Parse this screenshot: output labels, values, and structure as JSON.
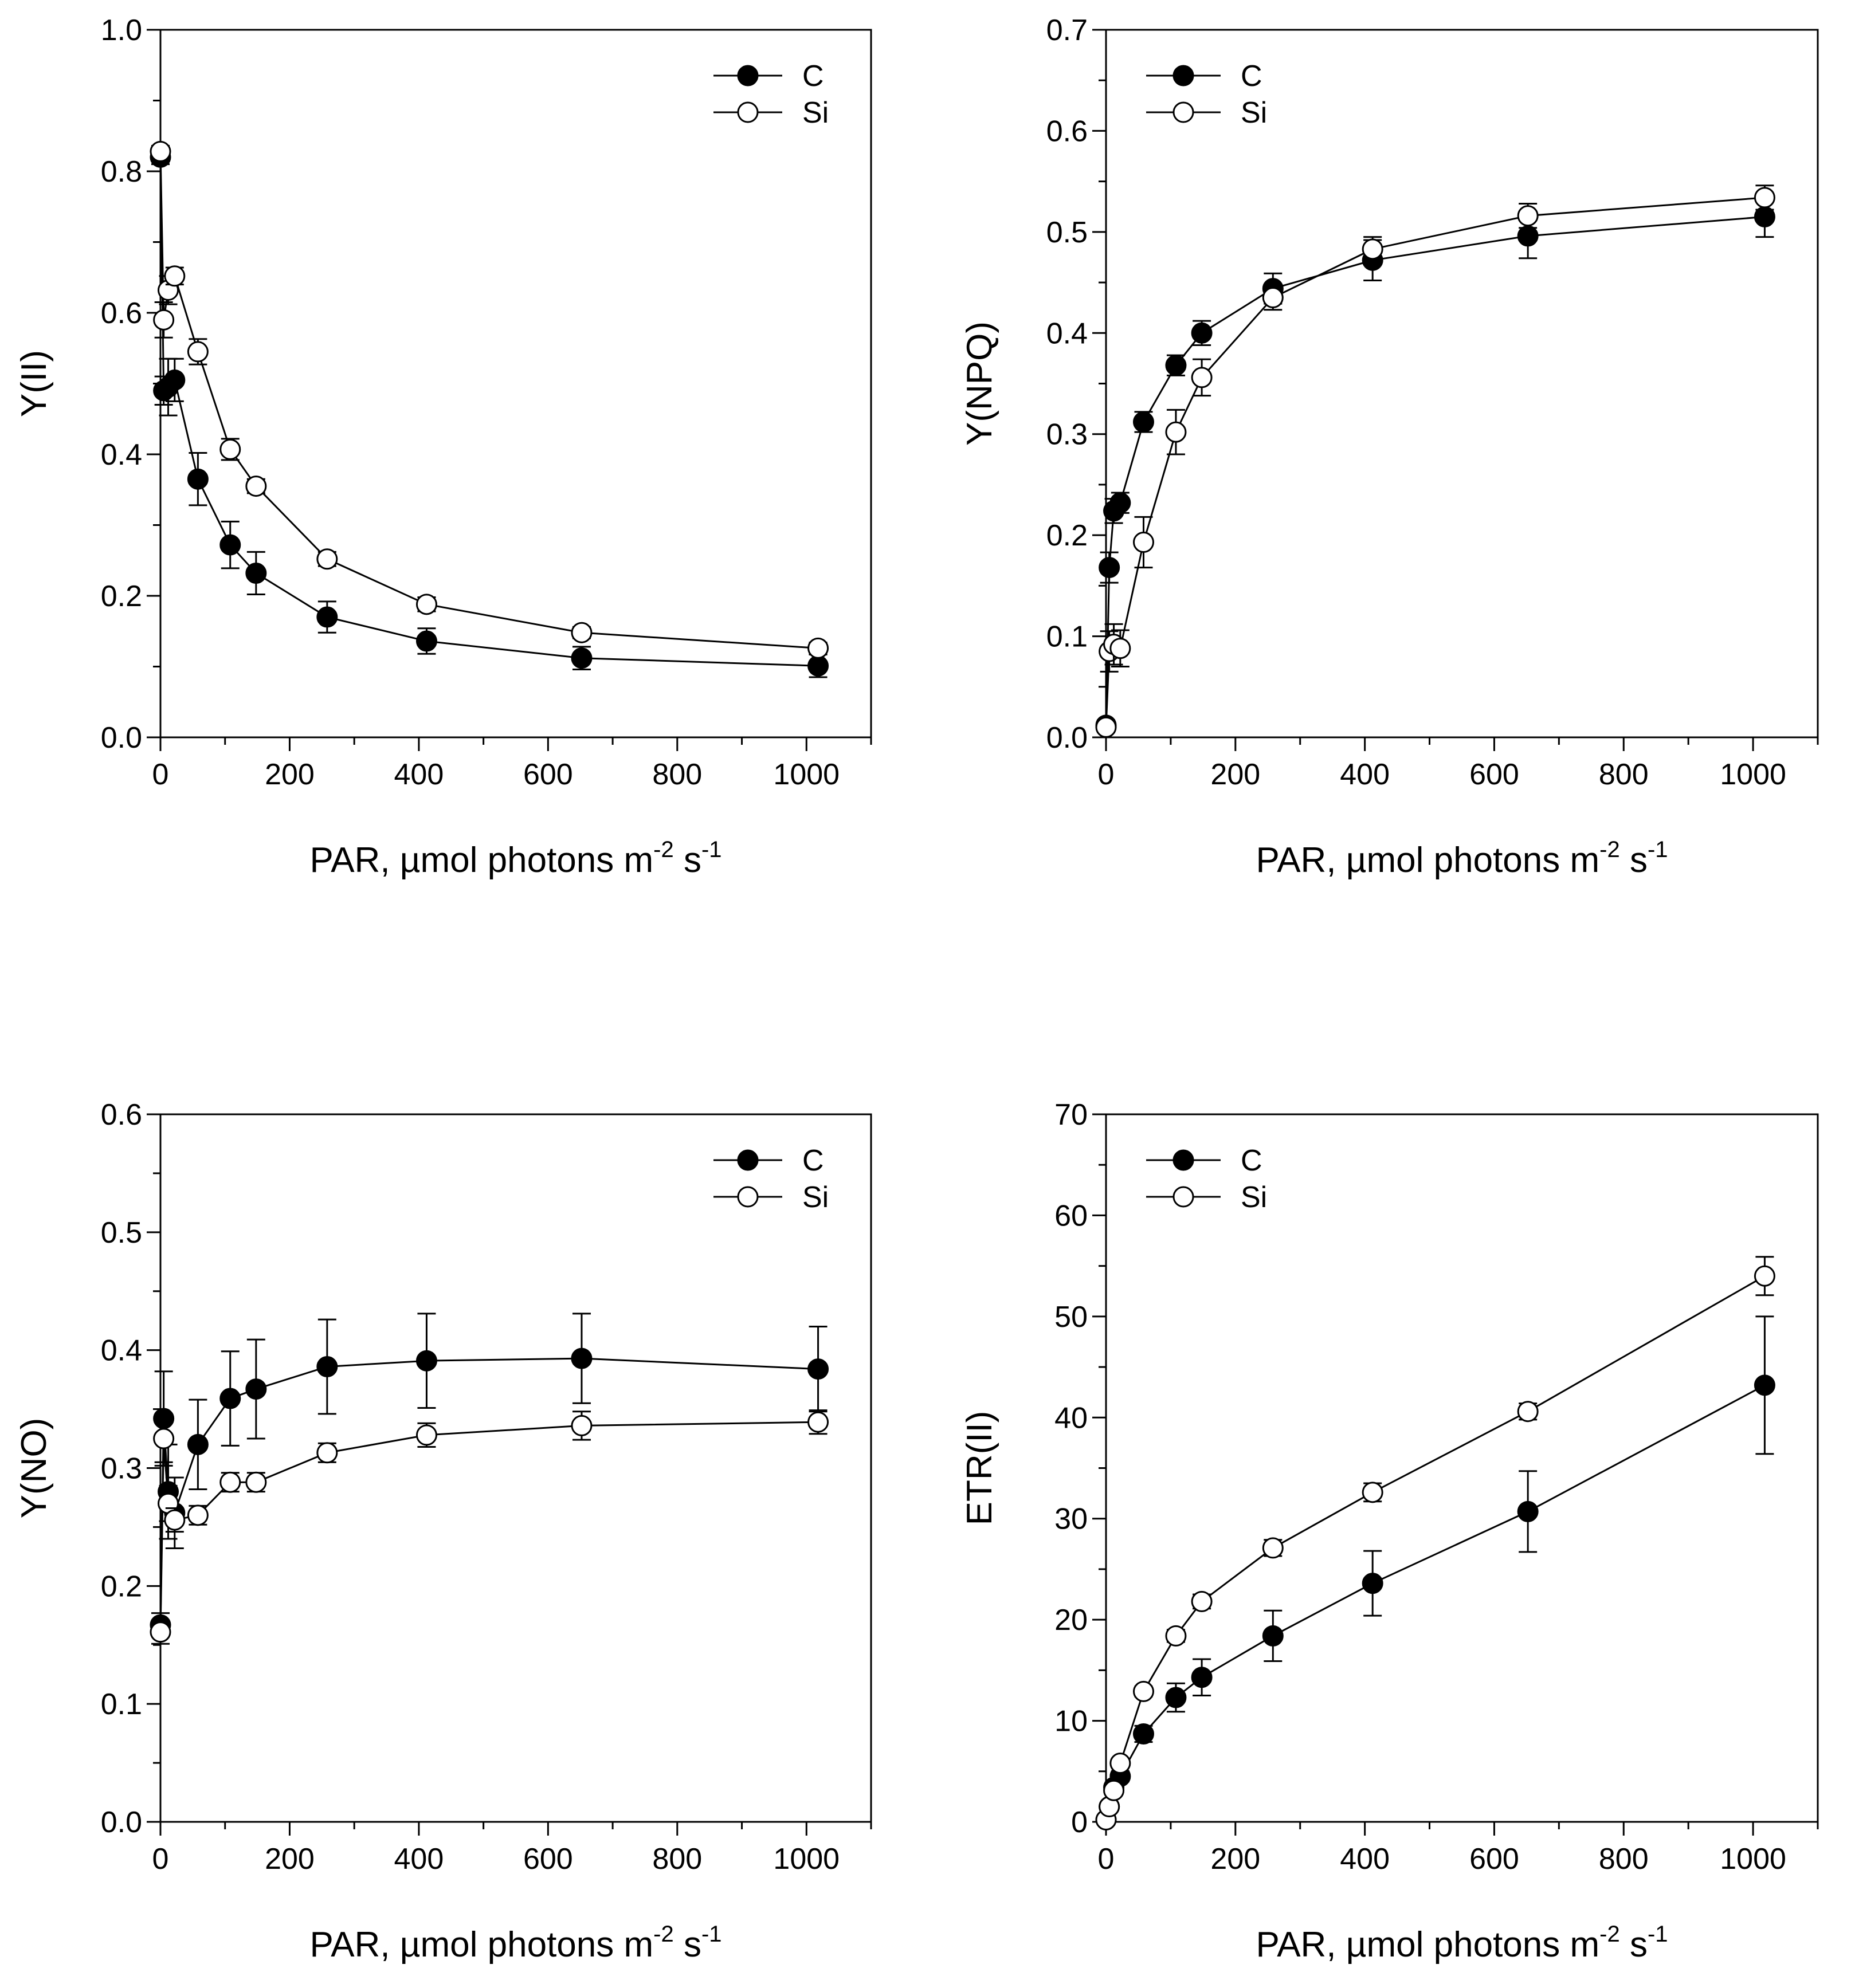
{
  "chart_data": [
    {
      "type": "line",
      "panel": "top-left",
      "xlabel": "PAR, µmol photons m",
      "xlabel_sup1": "-2",
      "xlabel_mid": " s",
      "xlabel_sup2": "-1",
      "ylabel": "Y(II)",
      "xlim": [
        0,
        1100
      ],
      "ylim": [
        0,
        1.0
      ],
      "xticks": [
        "0",
        "200",
        "400",
        "600",
        "800",
        "1000"
      ],
      "yticks": [
        "0.0",
        "0.2",
        "0.4",
        "0.6",
        "0.8",
        "1.0"
      ],
      "legend_position": "top-right",
      "series": [
        {
          "name": "C",
          "marker": "filled",
          "x": [
            0,
            5,
            12,
            22,
            58,
            108,
            148,
            258,
            412,
            652,
            1018
          ],
          "y": [
            0.82,
            0.49,
            0.495,
            0.505,
            0.365,
            0.272,
            0.232,
            0.17,
            0.136,
            0.112,
            0.101
          ],
          "err": [
            0.01,
            0.02,
            0.04,
            0.03,
            0.037,
            0.033,
            0.03,
            0.022,
            0.018,
            0.016,
            0.016
          ]
        },
        {
          "name": "Si",
          "marker": "open",
          "x": [
            0,
            5,
            12,
            22,
            58,
            108,
            148,
            258,
            412,
            652,
            1018
          ],
          "y": [
            0.828,
            0.59,
            0.632,
            0.652,
            0.545,
            0.407,
            0.355,
            0.252,
            0.188,
            0.148,
            0.126
          ],
          "err": [
            0.008,
            0.025,
            0.02,
            0.012,
            0.018,
            0.015,
            0.01,
            0.01,
            0.01,
            0.008,
            0.008
          ]
        }
      ]
    },
    {
      "type": "line",
      "panel": "top-right",
      "xlabel": "PAR, µmol photons m",
      "xlabel_sup1": "-2",
      "xlabel_mid": " s",
      "xlabel_sup2": "-1",
      "ylabel": "Y(NPQ)",
      "xlim": [
        0,
        1100
      ],
      "ylim": [
        0,
        0.7
      ],
      "xticks": [
        "0",
        "200",
        "400",
        "600",
        "800",
        "1000"
      ],
      "yticks": [
        "0.0",
        "0.1",
        "0.2",
        "0.3",
        "0.4",
        "0.5",
        "0.6",
        "0.7"
      ],
      "legend_position": "top-left",
      "series": [
        {
          "name": "C",
          "marker": "filled",
          "x": [
            0,
            5,
            12,
            22,
            58,
            108,
            148,
            258,
            412,
            652,
            1018
          ],
          "y": [
            0.012,
            0.168,
            0.224,
            0.232,
            0.312,
            0.368,
            0.4,
            0.444,
            0.472,
            0.496,
            0.515
          ],
          "err": [
            0.005,
            0.015,
            0.012,
            0.01,
            0.01,
            0.01,
            0.012,
            0.015,
            0.02,
            0.022,
            0.02
          ]
        },
        {
          "name": "Si",
          "marker": "open",
          "x": [
            0,
            5,
            12,
            22,
            58,
            108,
            148,
            258,
            412,
            652,
            1018
          ],
          "y": [
            0.01,
            0.085,
            0.092,
            0.088,
            0.193,
            0.302,
            0.356,
            0.435,
            0.483,
            0.516,
            0.534
          ],
          "err": [
            0.005,
            0.02,
            0.02,
            0.018,
            0.025,
            0.022,
            0.018,
            0.012,
            0.012,
            0.012,
            0.012
          ]
        }
      ]
    },
    {
      "type": "line",
      "panel": "bottom-left",
      "xlabel": "PAR, µmol photons m",
      "xlabel_sup1": "-2",
      "xlabel_mid": " s",
      "xlabel_sup2": "-1",
      "ylabel": "Y(NO)",
      "xlim": [
        0,
        1100
      ],
      "ylim": [
        0,
        0.6
      ],
      "xticks": [
        "0",
        "200",
        "400",
        "600",
        "800",
        "1000"
      ],
      "yticks": [
        "0.0",
        "0.1",
        "0.2",
        "0.3",
        "0.4",
        "0.5",
        "0.6"
      ],
      "legend_position": "top-right",
      "series": [
        {
          "name": "C",
          "marker": "filled",
          "x": [
            0,
            5,
            12,
            22,
            58,
            108,
            148,
            258,
            412,
            652,
            1018
          ],
          "y": [
            0.167,
            0.342,
            0.28,
            0.262,
            0.32,
            0.359,
            0.367,
            0.386,
            0.391,
            0.393,
            0.384
          ],
          "err": [
            0.01,
            0.04,
            0.04,
            0.03,
            0.038,
            0.04,
            0.042,
            0.04,
            0.04,
            0.038,
            0.036
          ]
        },
        {
          "name": "Si",
          "marker": "open",
          "x": [
            0,
            5,
            12,
            22,
            58,
            108,
            148,
            258,
            412,
            652,
            1018
          ],
          "y": [
            0.161,
            0.325,
            0.27,
            0.256,
            0.26,
            0.288,
            0.288,
            0.313,
            0.328,
            0.336,
            0.339
          ],
          "err": [
            0.01,
            0.02,
            0.015,
            0.01,
            0.008,
            0.008,
            0.008,
            0.008,
            0.01,
            0.012,
            0.01
          ]
        }
      ]
    },
    {
      "type": "line",
      "panel": "bottom-right",
      "xlabel": "PAR, µmol photons m",
      "xlabel_sup1": "-2",
      "xlabel_mid": " s",
      "xlabel_sup2": "-1",
      "ylabel": "ETR(II)",
      "xlim": [
        0,
        1100
      ],
      "ylim": [
        0,
        70
      ],
      "xticks": [
        "0",
        "200",
        "400",
        "600",
        "800",
        "1000"
      ],
      "yticks": [
        "0",
        "10",
        "20",
        "30",
        "40",
        "50",
        "60",
        "70"
      ],
      "legend_position": "top-left",
      "series": [
        {
          "name": "C",
          "marker": "filled",
          "x": [
            0,
            5,
            12,
            22,
            58,
            108,
            148,
            258,
            412,
            652,
            1018
          ],
          "y": [
            0.2,
            1.5,
            3.4,
            4.5,
            8.7,
            12.3,
            14.3,
            18.4,
            23.6,
            30.7,
            43.2
          ],
          "err": [
            0.1,
            0.3,
            0.5,
            0.5,
            0.8,
            1.4,
            1.8,
            2.5,
            3.2,
            4.0,
            6.8
          ]
        },
        {
          "name": "Si",
          "marker": "open",
          "x": [
            0,
            5,
            12,
            22,
            58,
            108,
            148,
            258,
            412,
            652,
            1018
          ],
          "y": [
            0.2,
            1.5,
            3.1,
            5.8,
            12.9,
            18.4,
            21.8,
            27.1,
            32.6,
            40.6,
            54.0
          ],
          "err": [
            0.1,
            0.2,
            0.3,
            0.4,
            0.5,
            0.6,
            0.7,
            0.8,
            0.9,
            0.8,
            1.9
          ]
        }
      ]
    }
  ]
}
